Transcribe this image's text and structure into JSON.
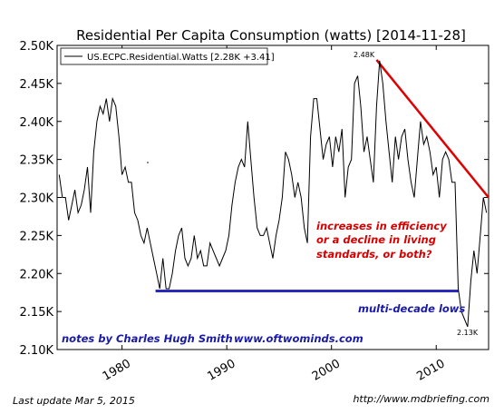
{
  "chart_data": {
    "type": "line",
    "title": "Residential Per Capita Consumption (watts)  [2014-11-28]",
    "xlabel": "",
    "ylabel": "",
    "xlim": [
      1973.8,
      2015.0
    ],
    "ylim": [
      2.1,
      2.5
    ],
    "x_ticks": [
      1980,
      1990,
      2000,
      2010
    ],
    "x_tick_labels": [
      "1980",
      "1990",
      "2000",
      "2010"
    ],
    "y_ticks": [
      2.1,
      2.15,
      2.2,
      2.25,
      2.3,
      2.35,
      2.4,
      2.45,
      2.5
    ],
    "y_tick_labels": [
      "2.10K",
      "2.15K",
      "2.20K",
      "2.25K",
      "2.30K",
      "2.35K",
      "2.40K",
      "2.45K",
      "2.50K"
    ],
    "legend": {
      "placement": "top-left",
      "entries": [
        "US.ECPC.Residential.Watts [2.28K +3.41]"
      ]
    },
    "series": [
      {
        "name": "US.ECPC.Residential.Watts [2.28K +3.41]",
        "color": "#000000",
        "x": [
          1974.0,
          1974.3,
          1974.6,
          1974.9,
          1975.2,
          1975.5,
          1975.8,
          1976.1,
          1976.4,
          1976.7,
          1977.0,
          1977.3,
          1977.6,
          1977.9,
          1978.2,
          1978.5,
          1978.8,
          1979.1,
          1979.4,
          1979.7,
          1980.0,
          1980.3,
          1980.6,
          1980.9,
          1981.2,
          1981.5,
          1981.8,
          1982.1,
          1982.4,
          1982.7,
          1983.0,
          1983.3,
          1983.6,
          1983.9,
          1984.2,
          1984.5,
          1984.8,
          1985.1,
          1985.4,
          1985.7,
          1986.0,
          1986.3,
          1986.6,
          1986.9,
          1987.2,
          1987.5,
          1987.8,
          1988.1,
          1988.4,
          1988.7,
          1989.0,
          1989.3,
          1989.6,
          1989.9,
          1990.2,
          1990.5,
          1990.8,
          1991.1,
          1991.4,
          1991.7,
          1992.0,
          1992.3,
          1992.6,
          1992.9,
          1993.2,
          1993.5,
          1993.8,
          1994.1,
          1994.4,
          1994.7,
          1995.0,
          1995.3,
          1995.6,
          1995.9,
          1996.2,
          1996.5,
          1996.8,
          1997.1,
          1997.4,
          1997.7,
          1998.0,
          1998.3,
          1998.6,
          1998.9,
          1999.2,
          1999.5,
          1999.8,
          2000.1,
          2000.4,
          2000.7,
          2001.0,
          2001.3,
          2001.6,
          2001.9,
          2002.2,
          2002.5,
          2002.8,
          2003.1,
          2003.4,
          2003.7,
          2004.0,
          2004.3,
          2004.6,
          2004.9,
          2005.2,
          2005.5,
          2005.8,
          2006.1,
          2006.4,
          2006.7,
          2007.0,
          2007.3,
          2007.6,
          2007.9,
          2008.2,
          2008.5,
          2008.8,
          2009.1,
          2009.4,
          2009.7,
          2010.0,
          2010.3,
          2010.6,
          2010.9,
          2011.2,
          2011.5,
          2011.8,
          2012.1,
          2012.4,
          2012.7,
          2013.0,
          2013.3,
          2013.6,
          2013.9,
          2014.2,
          2014.5,
          2014.8
        ],
        "y": [
          2.33,
          2.3,
          2.3,
          2.27,
          2.29,
          2.31,
          2.28,
          2.29,
          2.31,
          2.34,
          2.28,
          2.36,
          2.4,
          2.42,
          2.41,
          2.43,
          2.4,
          2.43,
          2.42,
          2.38,
          2.33,
          2.34,
          2.32,
          2.32,
          2.28,
          2.27,
          2.25,
          2.24,
          2.26,
          2.24,
          2.22,
          2.2,
          2.18,
          2.22,
          2.18,
          2.18,
          2.2,
          2.23,
          2.25,
          2.26,
          2.22,
          2.21,
          2.22,
          2.25,
          2.22,
          2.23,
          2.21,
          2.21,
          2.24,
          2.23,
          2.22,
          2.21,
          2.22,
          2.23,
          2.25,
          2.29,
          2.32,
          2.34,
          2.35,
          2.34,
          2.4,
          2.35,
          2.3,
          2.26,
          2.25,
          2.25,
          2.26,
          2.24,
          2.22,
          2.25,
          2.27,
          2.3,
          2.36,
          2.35,
          2.33,
          2.3,
          2.32,
          2.3,
          2.26,
          2.24,
          2.38,
          2.43,
          2.43,
          2.39,
          2.35,
          2.37,
          2.38,
          2.34,
          2.38,
          2.36,
          2.39,
          2.3,
          2.34,
          2.35,
          2.45,
          2.46,
          2.42,
          2.36,
          2.38,
          2.35,
          2.32,
          2.42,
          2.48,
          2.45,
          2.4,
          2.36,
          2.32,
          2.38,
          2.35,
          2.38,
          2.39,
          2.35,
          2.32,
          2.3,
          2.35,
          2.4,
          2.37,
          2.38,
          2.36,
          2.33,
          2.34,
          2.3,
          2.35,
          2.36,
          2.35,
          2.32,
          2.32,
          2.18,
          2.15,
          2.14,
          2.13,
          2.19,
          2.23,
          2.2,
          2.25,
          2.3,
          2.28
        ]
      }
    ],
    "annotations": [
      {
        "type": "label",
        "text": "2.48K",
        "x": 2004.1,
        "y": 2.481
      },
      {
        "type": "label",
        "text": "2.13K",
        "x": 2013.0,
        "y": 2.125
      },
      {
        "type": "trendline",
        "color": "#e00000",
        "x0": 2004.3,
        "y0": 2.481,
        "x1": 2015.0,
        "y1": 2.3
      },
      {
        "type": "hline",
        "color": "#2a2ab8",
        "x0": 1983.2,
        "x1": 2012.1,
        "y": 2.177
      },
      {
        "type": "text",
        "color": "#d80000",
        "lines": [
          "increases in efficiency",
          "or a decline in living",
          "standards, or both?"
        ]
      },
      {
        "type": "text",
        "color": "#1a1aa8",
        "lines": [
          "multi-decade lows"
        ]
      },
      {
        "type": "text",
        "color": "#1a1aa8",
        "lines": [
          "notes by Charles Hugh Smith"
        ]
      },
      {
        "type": "text",
        "color": "#1a1aa8",
        "lines": [
          "www.oftwominds.com"
        ]
      }
    ],
    "footer": {
      "left": "Last update Mar  5, 2015",
      "right": "http://www.mdbriefing.com"
    },
    "grid": false
  }
}
